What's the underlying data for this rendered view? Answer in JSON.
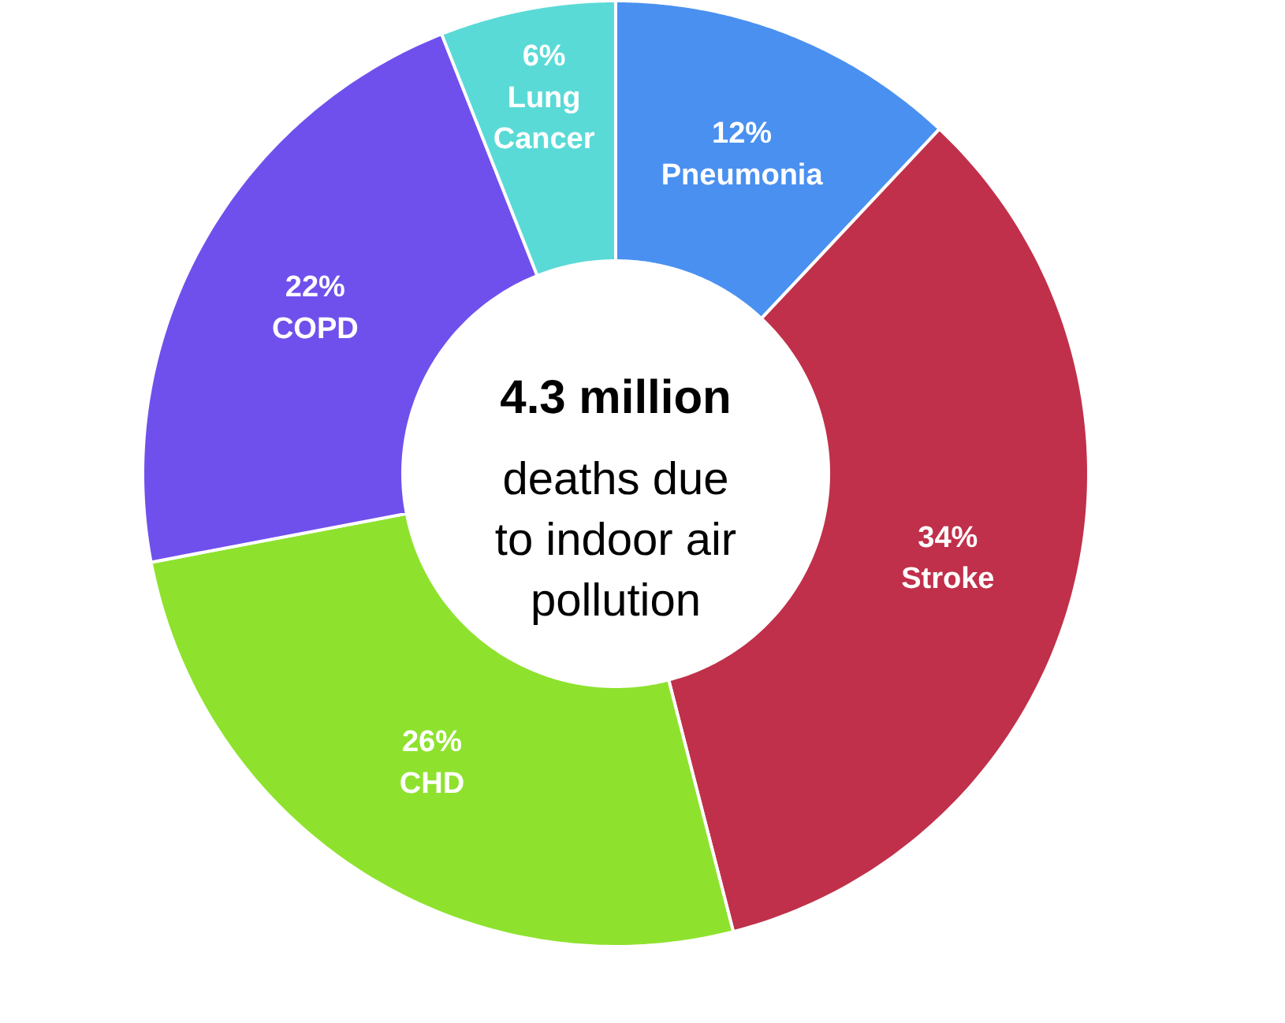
{
  "chart_data": {
    "type": "donut",
    "title": "4.3 million",
    "subtitle": "deaths due\nto indoor air\npollution",
    "categories": [
      "Pneumonia",
      "Stroke",
      "CHD",
      "COPD",
      "Lung Cancer"
    ],
    "values": [
      12,
      34,
      26,
      22,
      6
    ],
    "value_labels": [
      "12%",
      "34%",
      "26%",
      "22%",
      "6%"
    ],
    "colors": [
      "#4a90f0",
      "#c0304a",
      "#8ee22e",
      "#7050ec",
      "#5adad6"
    ]
  }
}
